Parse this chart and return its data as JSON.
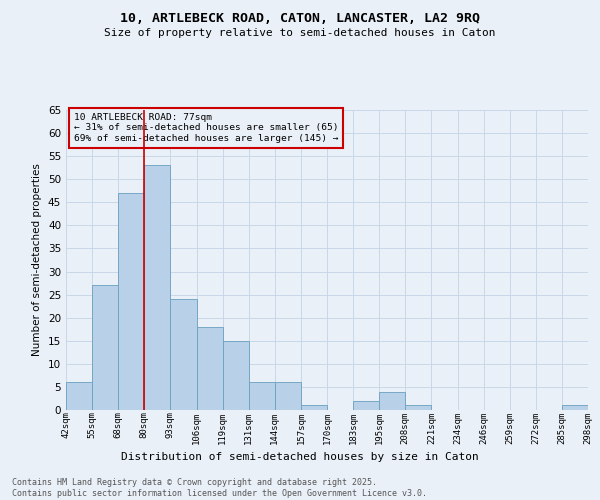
{
  "title1": "10, ARTLEBECK ROAD, CATON, LANCASTER, LA2 9RQ",
  "title2": "Size of property relative to semi-detached houses in Caton",
  "xlabel": "Distribution of semi-detached houses by size in Caton",
  "ylabel": "Number of semi-detached properties",
  "bin_labels": [
    "42sqm",
    "55sqm",
    "68sqm",
    "80sqm",
    "93sqm",
    "106sqm",
    "119sqm",
    "131sqm",
    "144sqm",
    "157sqm",
    "170sqm",
    "183sqm",
    "195sqm",
    "208sqm",
    "221sqm",
    "234sqm",
    "246sqm",
    "259sqm",
    "272sqm",
    "285sqm",
    "298sqm"
  ],
  "counts": [
    6,
    27,
    47,
    53,
    24,
    18,
    15,
    6,
    6,
    1,
    0,
    2,
    4,
    1,
    0,
    0,
    0,
    0,
    0,
    1
  ],
  "bar_color": "#b8d0e8",
  "bar_edge_color": "#6a9fc0",
  "grid_color": "#c8d8e8",
  "bg_color": "#eaf0f8",
  "annotation_title": "10 ARTLEBECK ROAD: 77sqm",
  "annotation_line1": "← 31% of semi-detached houses are smaller (65)",
  "annotation_line2": "69% of semi-detached houses are larger (145) →",
  "vline_color": "#cc0000",
  "annotation_box_edge": "#cc0000",
  "footer1": "Contains HM Land Registry data © Crown copyright and database right 2025.",
  "footer2": "Contains public sector information licensed under the Open Government Licence v3.0.",
  "ylim": [
    0,
    65
  ],
  "yticks": [
    0,
    5,
    10,
    15,
    20,
    25,
    30,
    35,
    40,
    45,
    50,
    55,
    60,
    65
  ],
  "vline_x": 3.0
}
